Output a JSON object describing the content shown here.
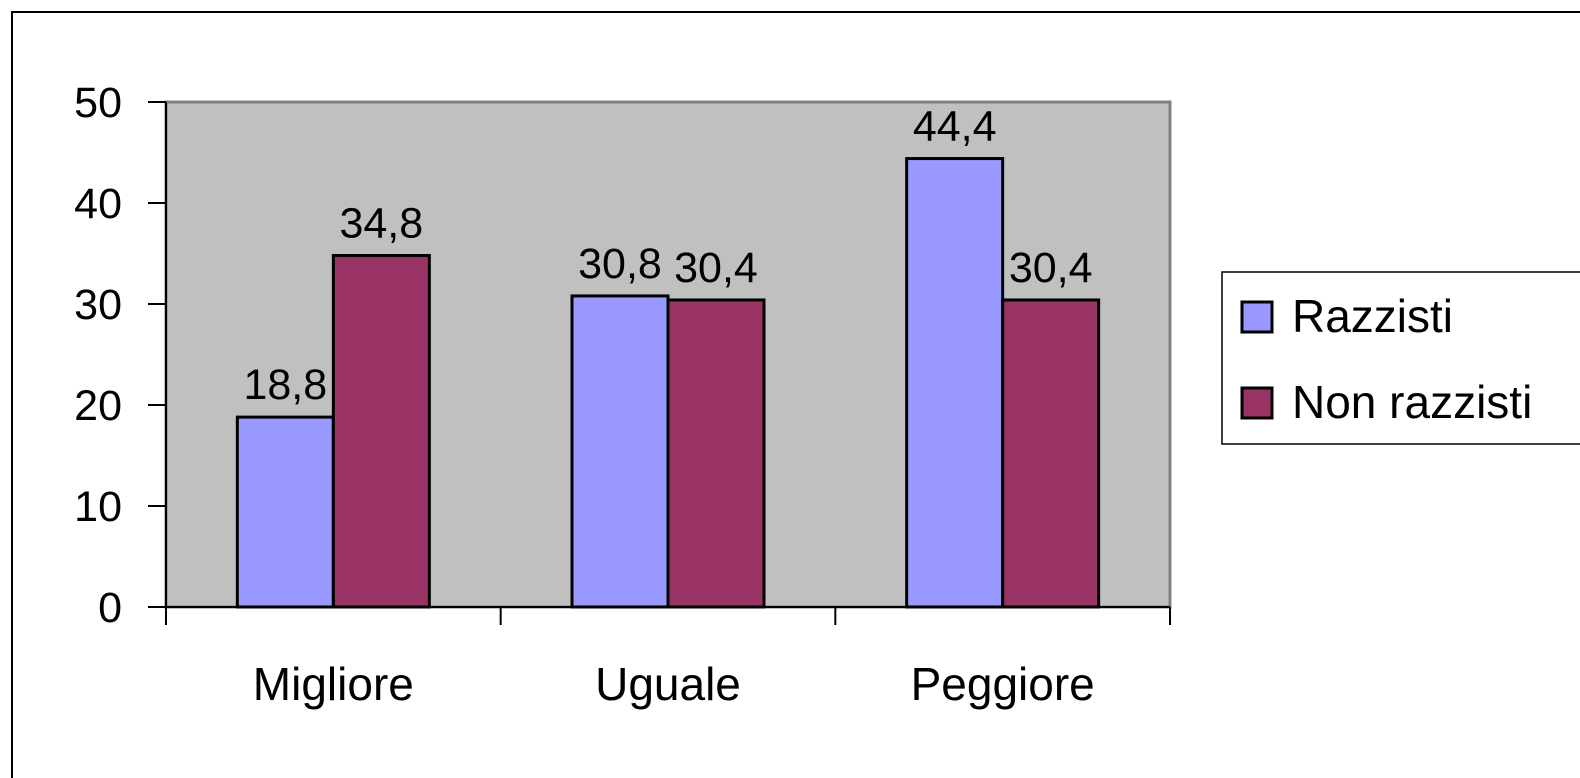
{
  "chart_data": {
    "type": "bar",
    "title": "",
    "xlabel": "",
    "ylabel": "",
    "categories": [
      "Migliore",
      "Uguale",
      "Peggiore"
    ],
    "series": [
      {
        "name": "Razzisti",
        "values": [
          18.8,
          30.8,
          44.4
        ],
        "labels": [
          "18,8",
          "30,8",
          "44,4"
        ],
        "color": "#9999ff"
      },
      {
        "name": "Non razzisti",
        "values": [
          34.8,
          30.4,
          30.4
        ],
        "labels": [
          "34,8",
          "30,4",
          "30,4"
        ],
        "color": "#993366"
      }
    ],
    "ylim": [
      0,
      50
    ],
    "yticks": [
      0,
      10,
      20,
      30,
      40,
      50
    ],
    "ytick_labels": [
      "0",
      "10",
      "20",
      "30",
      "40",
      "50"
    ],
    "plot_background": "#c0c0c0",
    "grid": false,
    "legend": "right"
  }
}
